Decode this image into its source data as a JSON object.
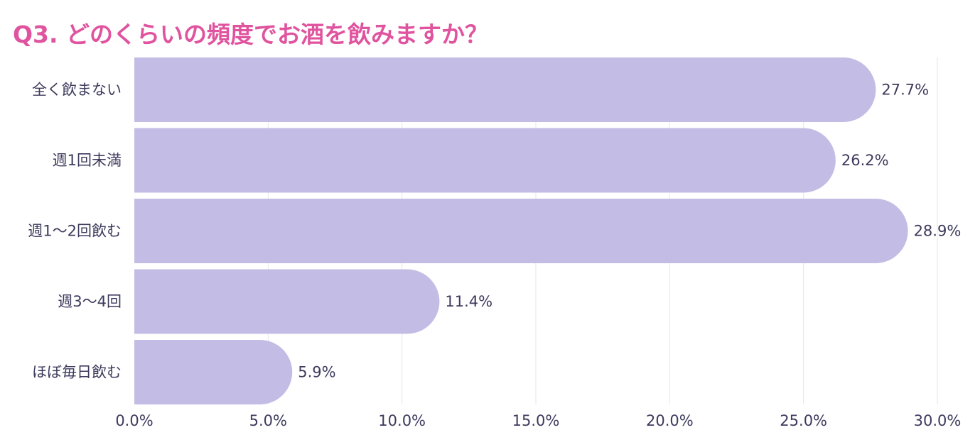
{
  "chart_data": {
    "type": "bar",
    "orientation": "horizontal",
    "title": "Q3. どのくらいの頻度でお酒を飲みますか？",
    "categories": [
      "全く飲まない",
      "週1回未満",
      "週1〜2回飲む",
      "週3〜4回",
      "ほぼ毎日飲む"
    ],
    "values": [
      27.7,
      26.2,
      28.9,
      11.4,
      5.9
    ],
    "value_labels": [
      "27.7%",
      "26.2%",
      "28.9%",
      "11.4%",
      "5.9%"
    ],
    "xlim": [
      0,
      30
    ],
    "xticks": [
      0,
      5,
      10,
      15,
      20,
      25,
      30
    ],
    "xtick_labels": [
      "0.0%",
      "5.0%",
      "10.0%",
      "15.0%",
      "20.0%",
      "25.0%",
      "30.0%"
    ],
    "xlabel": "",
    "ylabel": "",
    "grid": true,
    "legend": "none",
    "colors": {
      "bar": "#c3bde5",
      "title": "#e0549f",
      "text": "#3d3a5c",
      "grid": "#e6e6ea"
    }
  }
}
